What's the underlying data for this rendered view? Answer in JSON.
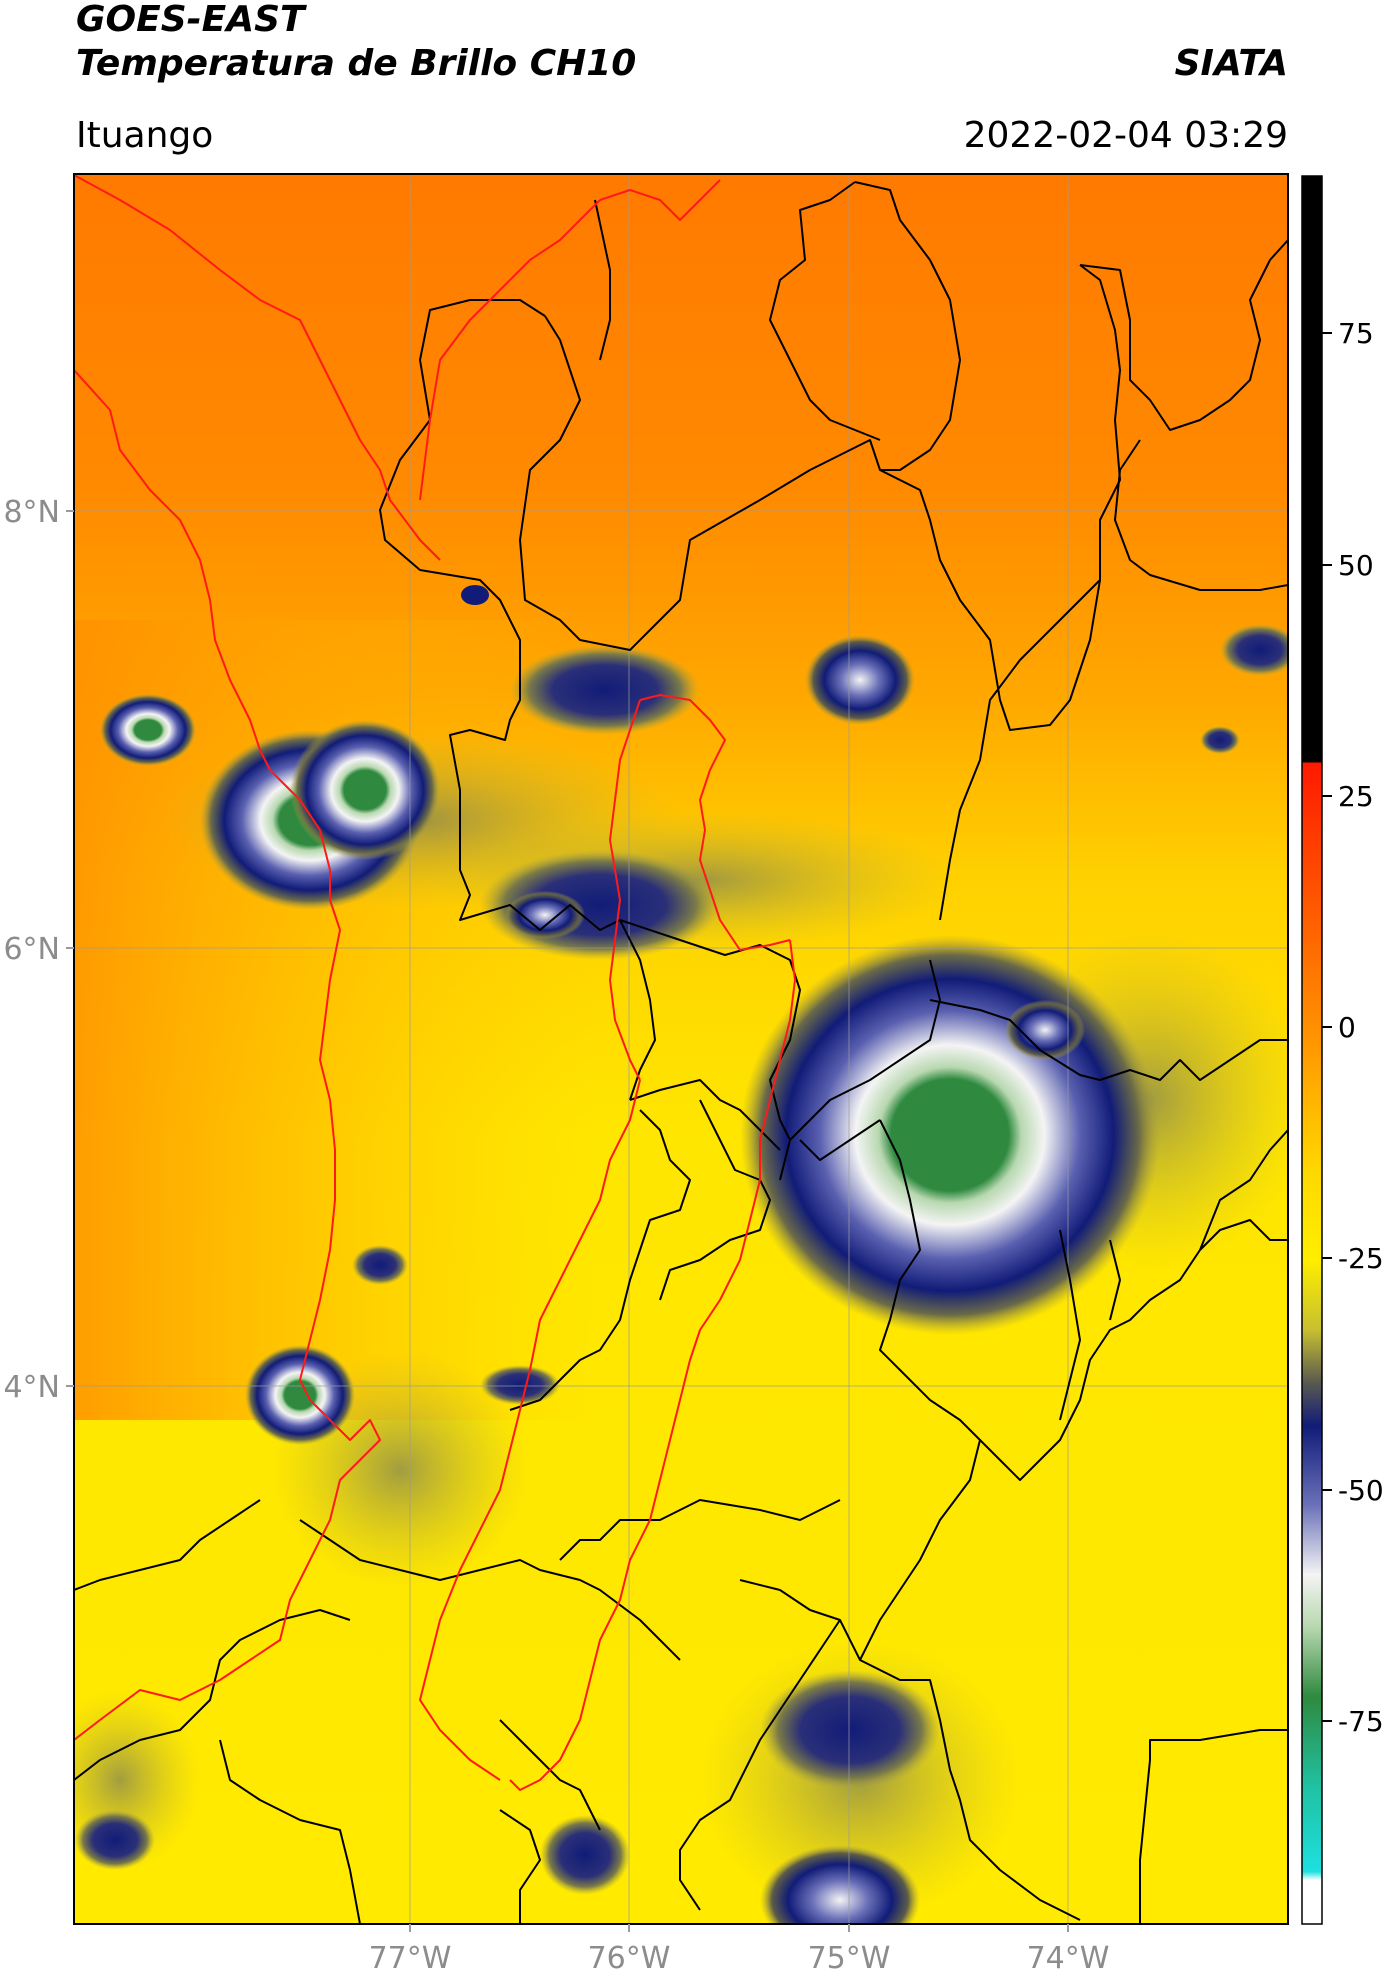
{
  "header": {
    "satellite": "GOES-EAST",
    "product": "Temperatura de Brillo CH10",
    "organization": "SIATA",
    "location": "Ituango",
    "datetime": "2022-02-04 03:29"
  },
  "map": {
    "lon_range": [
      -78.55,
      -73.0
    ],
    "lat_range": [
      1.0,
      9.0
    ],
    "lat_ticks": [
      {
        "value": 8,
        "label": "8°N"
      },
      {
        "value": 6,
        "label": "6°N"
      },
      {
        "value": 4,
        "label": "4°N"
      }
    ],
    "lon_ticks": [
      {
        "value": -77,
        "label": "77°W"
      },
      {
        "value": -76,
        "label": "76°W"
      },
      {
        "value": -75,
        "label": "75°W"
      },
      {
        "value": -74,
        "label": "74°W"
      }
    ],
    "gridlines": true
  },
  "colorbar": {
    "unit_range": [
      -92,
      92
    ],
    "ticks": [
      {
        "value": 75,
        "label": "75"
      },
      {
        "value": 50,
        "label": "50"
      },
      {
        "value": 25,
        "label": "25"
      },
      {
        "value": 0,
        "label": "0"
      },
      {
        "value": -25,
        "label": "-25"
      },
      {
        "value": -50,
        "label": "-50"
      },
      {
        "value": -75,
        "label": "-75"
      }
    ],
    "colors": {
      "warm_top": "#000000",
      "red": "#ff1a00",
      "orange": "#ff8c00",
      "yellow": "#ffee00",
      "olive": "#8a8a40",
      "navy": "#111c78",
      "white": "#f4f4f4",
      "green": "#2f8a40",
      "teal": "#20c0a0",
      "cyan": "#1de0e0"
    }
  }
}
